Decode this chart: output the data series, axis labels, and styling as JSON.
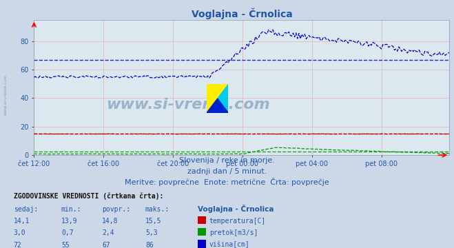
{
  "title": "Voglajna - Črnolica",
  "bg_color": "#ccd8e8",
  "plot_bg": "#dce8f0",
  "x_ticks_labels": [
    "čet 12:00",
    "čet 16:00",
    "čet 20:00",
    "pet 00:00",
    "pet 04:00",
    "pet 08:00"
  ],
  "x_ticks_pos": [
    0,
    48,
    96,
    144,
    192,
    240
  ],
  "n_points": 288,
  "ylim": [
    0,
    95
  ],
  "y_ticks": [
    0,
    20,
    40,
    60,
    80
  ],
  "temperatura_color": "#cc0000",
  "pretok_color": "#009900",
  "visina_color": "#0000cc",
  "subtitle1": "Slovenija / reke in morje.",
  "subtitle2": "zadnji dan / 5 minut.",
  "subtitle3": "Meritve: povprečne  Enote: metrične  Črta: povprečje",
  "table_header": "ZGODOVINSKE VREDNOSTI (črtkana črta):",
  "col_headers": [
    "sedaj:",
    "min.:",
    "povpr.:",
    "maks.:"
  ],
  "row_labels": [
    "temperatura[C]",
    "pretok[m3/s]",
    "višina[cm]"
  ],
  "row_colors": [
    "#cc0000",
    "#009900",
    "#0000cc"
  ],
  "table_data": [
    [
      "14,1",
      "13,9",
      "14,8",
      "15,5"
    ],
    [
      "3,0",
      "0,7",
      "2,4",
      "5,3"
    ],
    [
      "72",
      "55",
      "67",
      "86"
    ]
  ],
  "table_data_floats": [
    [
      14.1,
      13.9,
      14.8,
      15.5
    ],
    [
      3.0,
      0.7,
      2.4,
      5.3
    ],
    [
      72,
      55,
      67,
      86
    ]
  ],
  "station_label": "Voglajna - Črnolica",
  "text_color": "#2255aa",
  "watermark": "www.si-vreme.com",
  "left_watermark": "www.si-vreme.com"
}
